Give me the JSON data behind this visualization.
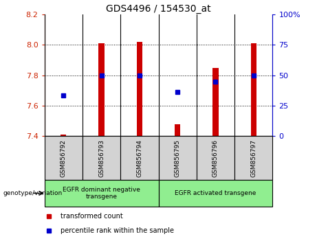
{
  "title": "GDS4496 / 154530_at",
  "samples": [
    "GSM856792",
    "GSM856793",
    "GSM856794",
    "GSM856795",
    "GSM856796",
    "GSM856797"
  ],
  "red_values": [
    7.41,
    8.01,
    8.02,
    7.48,
    7.85,
    8.01
  ],
  "blue_values": [
    7.67,
    7.8,
    7.8,
    7.69,
    7.76,
    7.8
  ],
  "ylim_left": [
    7.4,
    8.2
  ],
  "ylim_right": [
    0,
    100
  ],
  "yticks_left": [
    7.4,
    7.6,
    7.8,
    8.0,
    8.2
  ],
  "yticks_right": [
    0,
    25,
    50,
    75,
    100
  ],
  "ytick_labels_right": [
    "0",
    "25",
    "50",
    "75",
    "100%"
  ],
  "bar_bottom": 7.4,
  "red_color": "#CC0000",
  "blue_color": "#0000CC",
  "bar_width": 0.15,
  "label_color_red": "#CC2200",
  "label_color_blue": "#0000CC",
  "legend_red": "transformed count",
  "legend_blue": "percentile rank within the sample",
  "genotype_label": "genotype/variation",
  "group1_label": "EGFR dominant negative\ntransgene",
  "group2_label": "EGFR activated transgene",
  "group1_color": "#90EE90",
  "group2_color": "#90EE90",
  "sample_box_color": "#D3D3D3",
  "grid_dotted_color": "#000000",
  "grid_dotted_lw": 0.7
}
